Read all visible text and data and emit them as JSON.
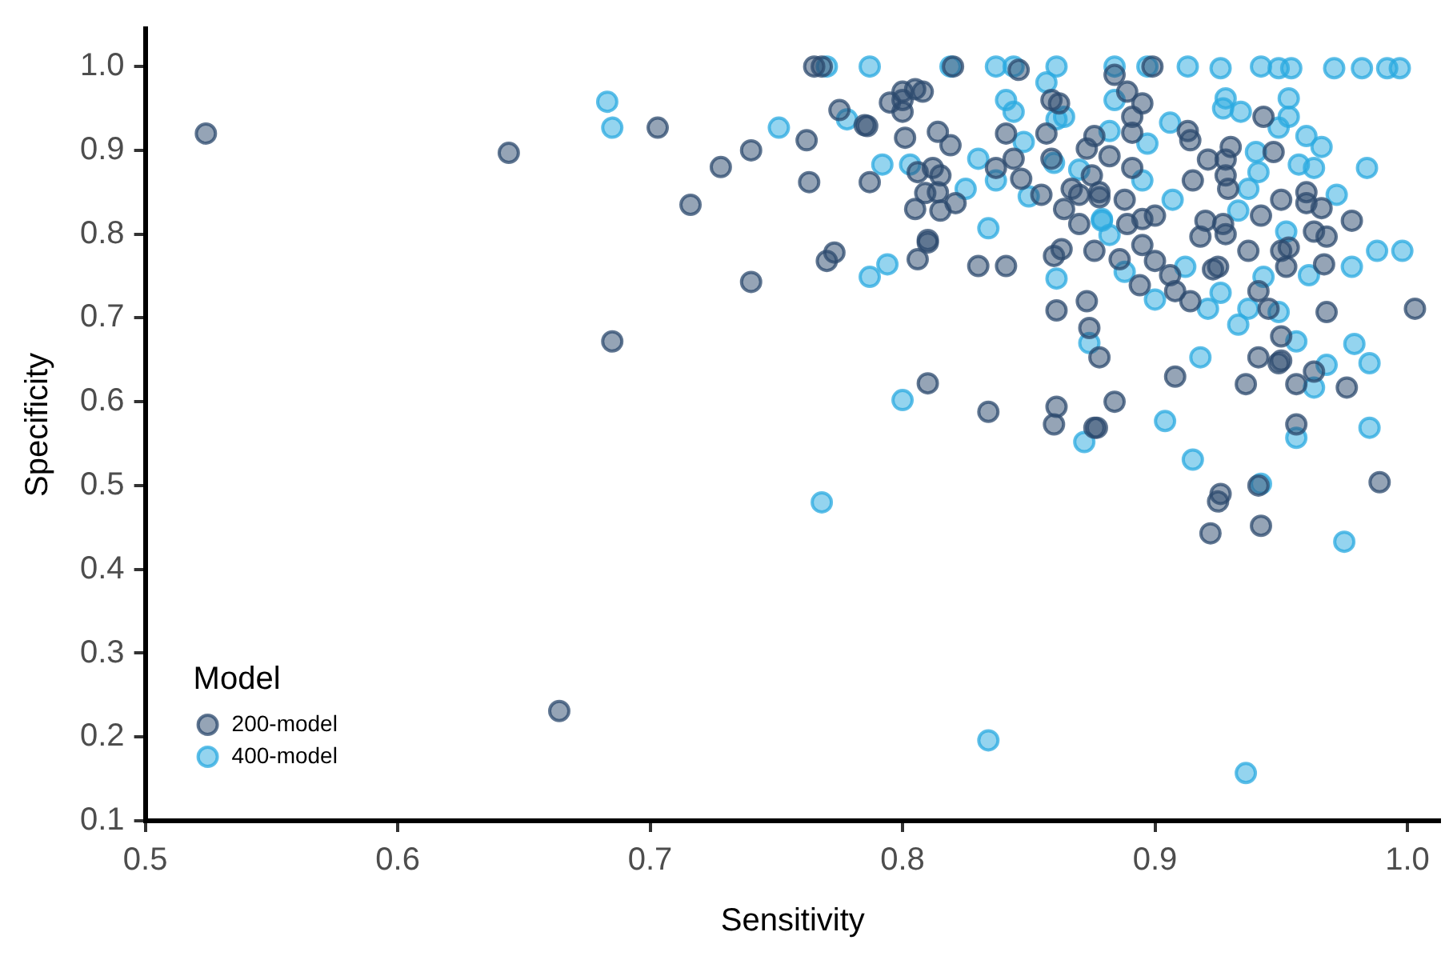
{
  "chart_data": {
    "type": "scatter",
    "xlabel": "Sensitivity",
    "ylabel": "Specificity",
    "legend_title": "Model",
    "legend": "bottom left",
    "grid": false,
    "marker": "circle",
    "xlim": [
      0.5,
      1.013
    ],
    "xticks": [
      0.5,
      0.6,
      0.7,
      0.8,
      0.9,
      {
        "value": 1,
        "label": "1.0"
      }
    ],
    "ylim": [
      0.1,
      1.045
    ],
    "yticks": [
      0.1,
      0.2,
      0.3,
      0.4,
      0.5,
      0.6,
      0.7,
      0.8,
      0.9,
      {
        "value": 1,
        "label": "1.0"
      }
    ],
    "series": [
      {
        "name": "200-model",
        "color": "#2c4a6e",
        "x": [
          0.524,
          0.644,
          0.685,
          0.664,
          0.703,
          0.716,
          0.728,
          0.74,
          0.74,
          0.762,
          0.765,
          0.768,
          0.763,
          0.77,
          0.773,
          0.775,
          0.785,
          0.787,
          0.795,
          0.8,
          0.805,
          0.808,
          0.801,
          0.805,
          0.81,
          0.81,
          0.806,
          0.81,
          0.834,
          0.86,
          0.861,
          0.876,
          0.83,
          0.841,
          0.861,
          0.873,
          0.874,
          0.878,
          0.86,
          0.863,
          0.876,
          0.82,
          0.846,
          0.8,
          0.8,
          0.786,
          0.814,
          0.819,
          0.841,
          0.844,
          0.837,
          0.812,
          0.815,
          0.806,
          0.809,
          0.814,
          0.815,
          0.821,
          0.847,
          0.855,
          0.859,
          0.862,
          0.857,
          0.859,
          0.876,
          0.873,
          0.867,
          0.87,
          0.864,
          0.87,
          0.878,
          0.875,
          0.884,
          0.899,
          0.889,
          0.895,
          0.891,
          0.891,
          0.882,
          0.891,
          0.878,
          0.888,
          0.889,
          0.895,
          0.9,
          0.886,
          0.895,
          0.9,
          0.906,
          0.894,
          0.908,
          0.914,
          0.913,
          0.914,
          0.921,
          0.928,
          0.93,
          0.928,
          0.929,
          0.915,
          0.92,
          0.927,
          0.928,
          0.918,
          0.925,
          0.923,
          0.937,
          0.941,
          0.945,
          0.943,
          0.947,
          0.95,
          0.942,
          0.953,
          0.95,
          0.952,
          0.96,
          0.96,
          0.966,
          0.963,
          0.968,
          0.967,
          0.978,
          0.968,
          1.003,
          0.941,
          0.95,
          0.95,
          0.949,
          0.936,
          0.956,
          0.963,
          0.976,
          0.908,
          0.884,
          0.877,
          0.956,
          0.989,
          0.926,
          0.941,
          0.925,
          0.922,
          0.942
        ],
        "values": [
          0.92,
          0.897,
          0.672,
          0.231,
          0.927,
          0.835,
          0.88,
          0.9,
          0.743,
          0.912,
          1.0,
          1.0,
          0.862,
          0.768,
          0.778,
          0.948,
          0.93,
          0.862,
          0.957,
          0.97,
          0.973,
          0.97,
          0.915,
          0.83,
          0.79,
          0.622,
          0.77,
          0.793,
          0.588,
          0.573,
          0.594,
          0.569,
          0.762,
          0.762,
          0.709,
          0.72,
          0.688,
          0.653,
          0.774,
          0.782,
          0.78,
          1.0,
          0.996,
          0.96,
          0.946,
          0.929,
          0.922,
          0.906,
          0.92,
          0.89,
          0.879,
          0.879,
          0.87,
          0.874,
          0.849,
          0.85,
          0.828,
          0.837,
          0.866,
          0.847,
          0.96,
          0.956,
          0.92,
          0.89,
          0.917,
          0.902,
          0.854,
          0.847,
          0.83,
          0.812,
          0.844,
          0.87,
          0.99,
          1.0,
          0.97,
          0.956,
          0.94,
          0.921,
          0.893,
          0.879,
          0.85,
          0.841,
          0.812,
          0.818,
          0.822,
          0.77,
          0.787,
          0.768,
          0.751,
          0.739,
          0.732,
          0.72,
          0.923,
          0.912,
          0.889,
          0.889,
          0.904,
          0.87,
          0.854,
          0.864,
          0.816,
          0.812,
          0.8,
          0.797,
          0.761,
          0.758,
          0.78,
          0.732,
          0.711,
          0.94,
          0.898,
          0.841,
          0.822,
          0.784,
          0.78,
          0.761,
          0.85,
          0.837,
          0.831,
          0.803,
          0.797,
          0.764,
          0.816,
          0.707,
          0.711,
          0.653,
          0.678,
          0.649,
          0.646,
          0.621,
          0.621,
          0.636,
          0.617,
          0.63,
          0.6,
          0.569,
          0.573,
          0.504,
          0.49,
          0.5,
          0.481,
          0.443,
          0.452
        ]
      },
      {
        "name": "400-model",
        "color": "#29a9e0",
        "x": [
          0.683,
          0.685,
          0.751,
          0.787,
          0.768,
          0.8,
          0.834,
          0.936,
          0.975,
          0.77,
          0.819,
          0.837,
          0.844,
          0.861,
          0.857,
          0.841,
          0.844,
          0.778,
          0.792,
          0.803,
          0.83,
          0.837,
          0.825,
          0.848,
          0.85,
          0.86,
          0.87,
          0.861,
          0.864,
          0.834,
          0.794,
          0.787,
          0.861,
          0.874,
          0.872,
          0.879,
          0.884,
          0.897,
          0.913,
          0.926,
          0.942,
          0.949,
          0.954,
          0.971,
          0.982,
          0.992,
          0.997,
          0.884,
          0.906,
          0.897,
          0.928,
          0.927,
          0.934,
          0.953,
          0.953,
          0.949,
          0.96,
          0.966,
          0.957,
          0.963,
          0.984,
          0.972,
          0.94,
          0.941,
          0.937,
          0.933,
          0.895,
          0.882,
          0.879,
          0.882,
          0.907,
          0.888,
          0.9,
          0.912,
          0.921,
          0.926,
          0.933,
          0.937,
          0.949,
          0.943,
          0.952,
          0.961,
          0.978,
          0.988,
          0.998,
          0.956,
          0.968,
          0.979,
          0.985,
          0.918,
          0.963,
          0.904,
          0.956,
          0.985,
          0.915,
          0.942
        ],
        "values": [
          0.958,
          0.927,
          0.927,
          1.0,
          0.48,
          0.602,
          0.196,
          0.157,
          0.433,
          1.0,
          1.0,
          1.0,
          1.0,
          1.0,
          0.981,
          0.96,
          0.946,
          0.937,
          0.883,
          0.883,
          0.89,
          0.864,
          0.854,
          0.91,
          0.845,
          0.885,
          0.877,
          0.937,
          0.94,
          0.807,
          0.764,
          0.749,
          0.747,
          0.67,
          0.552,
          0.818,
          1.0,
          1.0,
          1.0,
          0.998,
          1.0,
          0.998,
          0.998,
          0.998,
          0.998,
          0.998,
          0.998,
          0.96,
          0.933,
          0.908,
          0.962,
          0.95,
          0.946,
          0.962,
          0.94,
          0.927,
          0.917,
          0.904,
          0.883,
          0.879,
          0.879,
          0.847,
          0.898,
          0.874,
          0.854,
          0.828,
          0.864,
          0.923,
          0.816,
          0.799,
          0.841,
          0.755,
          0.722,
          0.761,
          0.711,
          0.73,
          0.692,
          0.711,
          0.707,
          0.749,
          0.803,
          0.751,
          0.761,
          0.78,
          0.78,
          0.672,
          0.644,
          0.669,
          0.646,
          0.653,
          0.617,
          0.577,
          0.557,
          0.569,
          0.531,
          0.502
        ]
      }
    ]
  }
}
